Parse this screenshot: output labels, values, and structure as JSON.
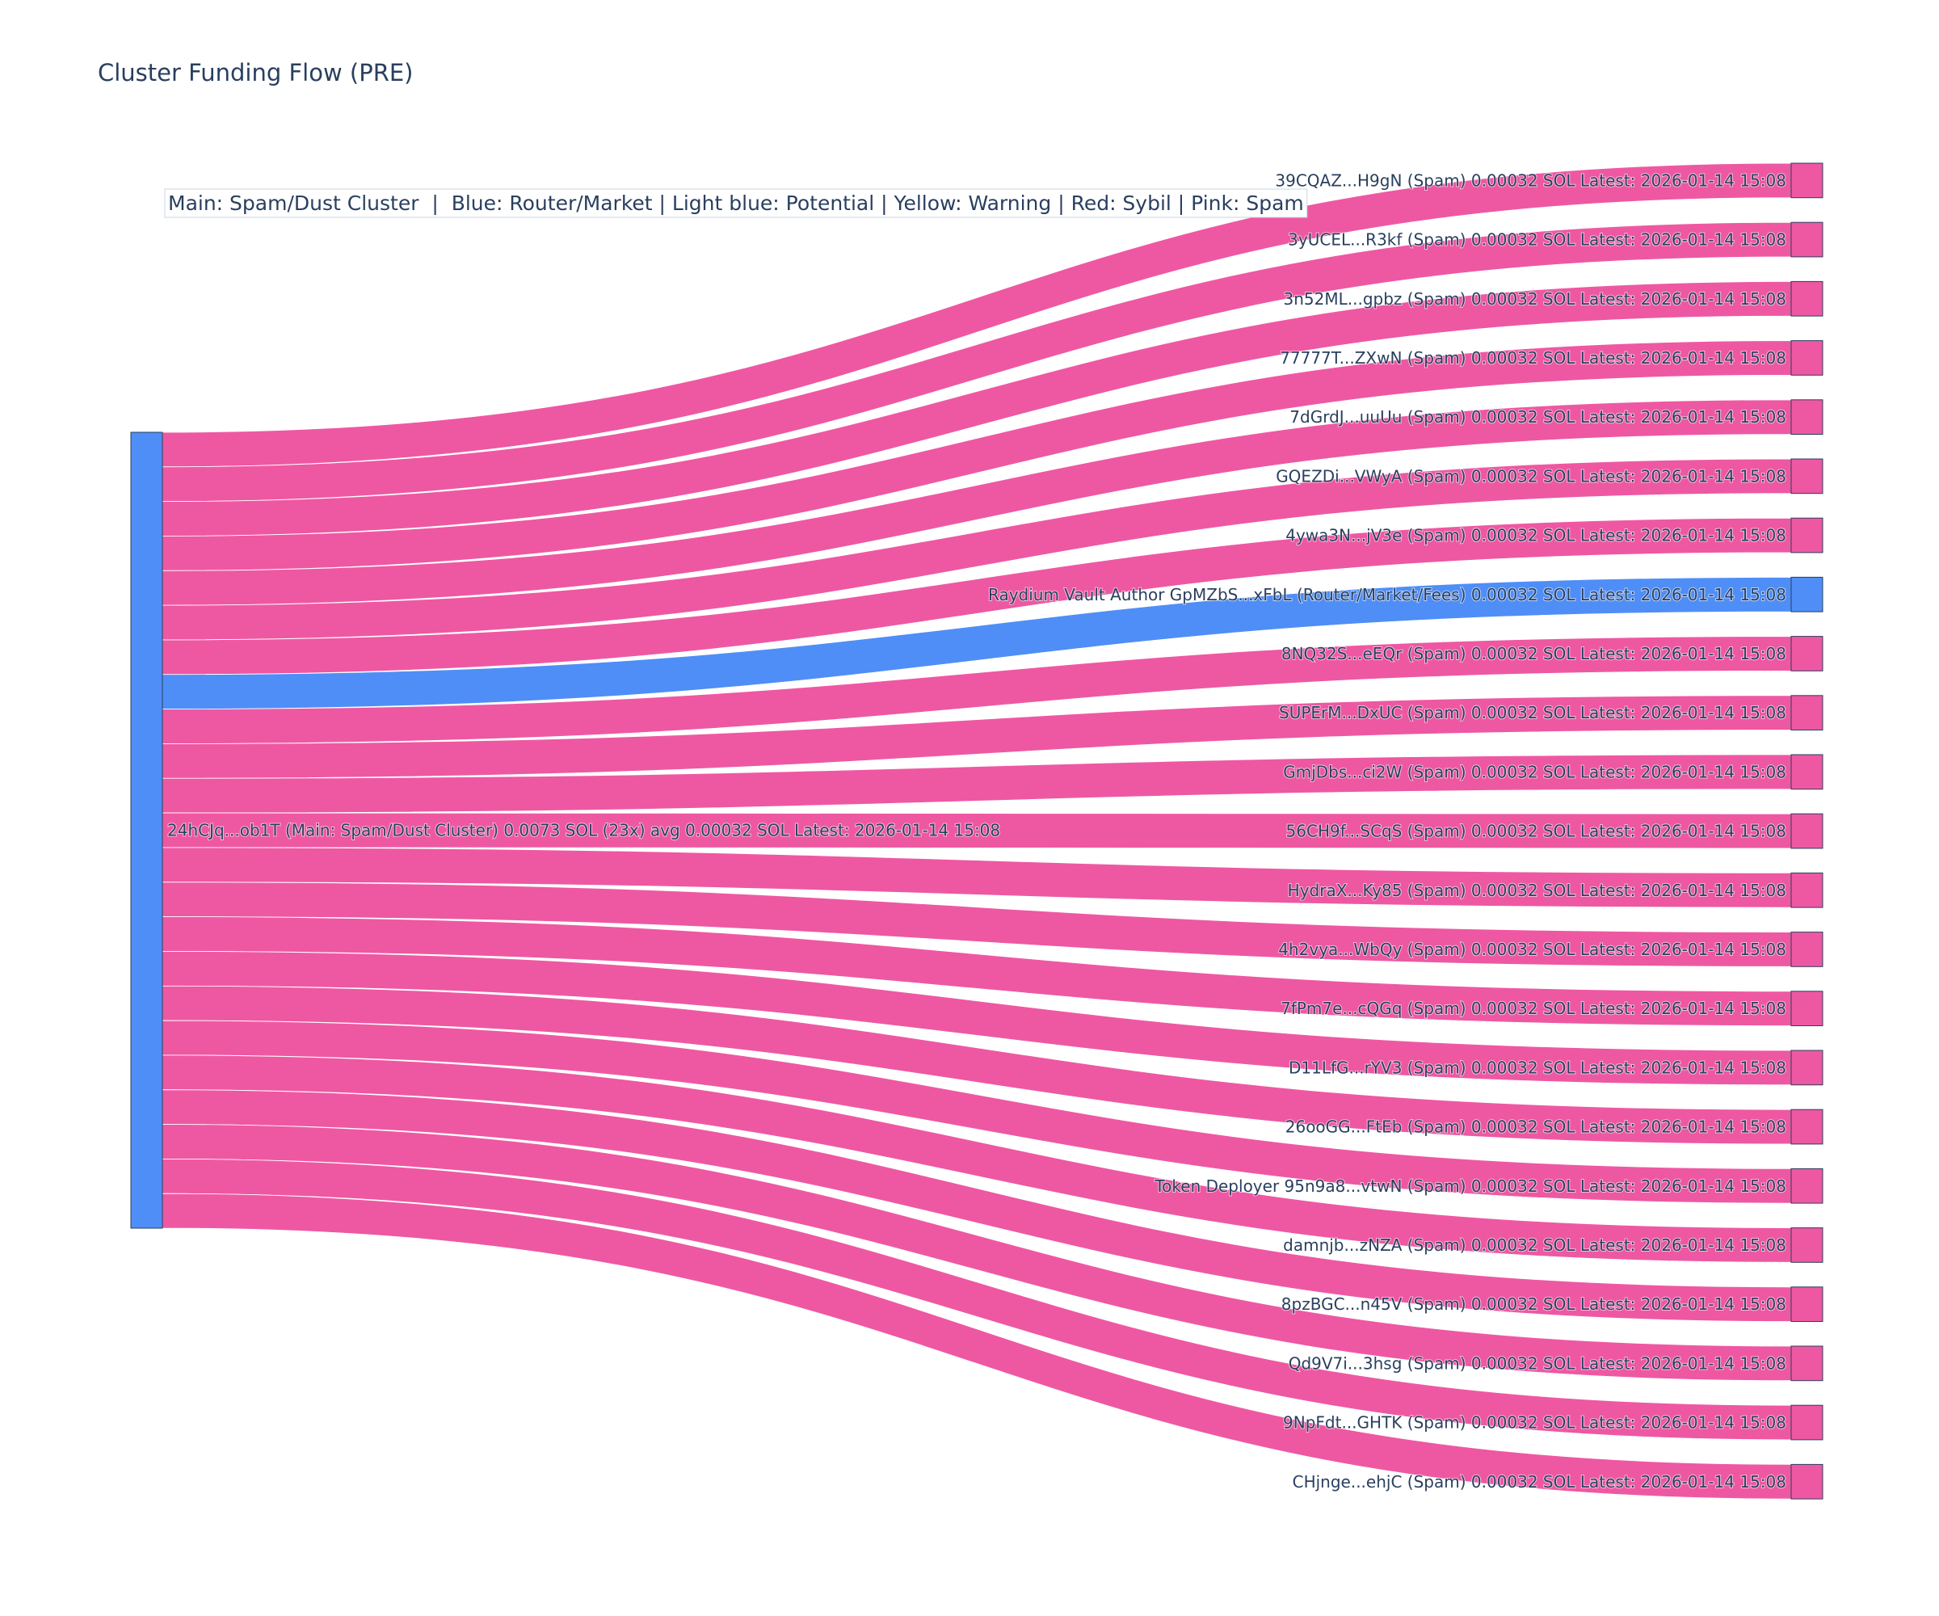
{
  "chart_data": {
    "type": "sankey",
    "title": "Cluster Funding Flow (PRE)",
    "legend_note": "Main: Spam/Dust Cluster  |  Blue: Router/Market | Light blue: Potential | Yellow: Warning | Red: Sybil | Pink: Spam",
    "colors": {
      "main": "#4f8ef7",
      "router": "#4f8ef7",
      "spam": "#ee58a2",
      "node_border": "#2a3f5f"
    },
    "source": {
      "label": "24hCJq...ob1T (Main: Spam/Dust Cluster) 0.0073 SOL (23x) avg 0.00032 SOL Latest: 2026-01-14 15:08",
      "category": "main"
    },
    "targets": [
      {
        "label": "39CQAZ...H9gN (Spam) 0.00032 SOL Latest: 2026-01-14 15:08",
        "category": "spam",
        "value": 0.00032
      },
      {
        "label": "3yUCEL...R3kf (Spam) 0.00032 SOL Latest: 2026-01-14 15:08",
        "category": "spam",
        "value": 0.00032
      },
      {
        "label": "3n52ML...gpbz (Spam) 0.00032 SOL Latest: 2026-01-14 15:08",
        "category": "spam",
        "value": 0.00032
      },
      {
        "label": "77777T...ZXwN (Spam) 0.00032 SOL Latest: 2026-01-14 15:08",
        "category": "spam",
        "value": 0.00032
      },
      {
        "label": "7dGrdJ...uuUu (Spam) 0.00032 SOL Latest: 2026-01-14 15:08",
        "category": "spam",
        "value": 0.00032
      },
      {
        "label": "GQEZDi...VWyA (Spam) 0.00032 SOL Latest: 2026-01-14 15:08",
        "category": "spam",
        "value": 0.00032
      },
      {
        "label": "4ywa3N...jV3e (Spam) 0.00032 SOL Latest: 2026-01-14 15:08",
        "category": "spam",
        "value": 0.00032
      },
      {
        "label": "Raydium Vault Author GpMZbS...xFbL (Router/Market/Fees) 0.00032 SOL Latest: 2026-01-14 15:08",
        "category": "router",
        "value": 0.00032
      },
      {
        "label": "8NQ32S...eEQr (Spam) 0.00032 SOL Latest: 2026-01-14 15:08",
        "category": "spam",
        "value": 0.00032
      },
      {
        "label": "SUPErM...DxUC (Spam) 0.00032 SOL Latest: 2026-01-14 15:08",
        "category": "spam",
        "value": 0.00032
      },
      {
        "label": "GmjDbs...ci2W (Spam) 0.00032 SOL Latest: 2026-01-14 15:08",
        "category": "spam",
        "value": 0.00032
      },
      {
        "label": "56CH9f...SCqS (Spam) 0.00032 SOL Latest: 2026-01-14 15:08",
        "category": "spam",
        "value": 0.00032
      },
      {
        "label": "HydraX...Ky85 (Spam) 0.00032 SOL Latest: 2026-01-14 15:08",
        "category": "spam",
        "value": 0.00032
      },
      {
        "label": "4h2vya...WbQy (Spam) 0.00032 SOL Latest: 2026-01-14 15:08",
        "category": "spam",
        "value": 0.00032
      },
      {
        "label": "7fPm7e...cQGq (Spam) 0.00032 SOL Latest: 2026-01-14 15:08",
        "category": "spam",
        "value": 0.00032
      },
      {
        "label": "D11LfG...rYV3 (Spam) 0.00032 SOL Latest: 2026-01-14 15:08",
        "category": "spam",
        "value": 0.00032
      },
      {
        "label": "26ooGG...FtEb (Spam) 0.00032 SOL Latest: 2026-01-14 15:08",
        "category": "spam",
        "value": 0.00032
      },
      {
        "label": "Token Deployer 95n9a8...vtwN (Spam) 0.00032 SOL Latest: 2026-01-14 15:08",
        "category": "spam",
        "value": 0.00032
      },
      {
        "label": "damnjb...zNZA (Spam) 0.00032 SOL Latest: 2026-01-14 15:08",
        "category": "spam",
        "value": 0.00032
      },
      {
        "label": "8pzBGC...n45V (Spam) 0.00032 SOL Latest: 2026-01-14 15:08",
        "category": "spam",
        "value": 0.00032
      },
      {
        "label": "Qd9V7i...3hsg (Spam) 0.00032 SOL Latest: 2026-01-14 15:08",
        "category": "spam",
        "value": 0.00032
      },
      {
        "label": "9NpFdt...GHTK (Spam) 0.00032 SOL Latest: 2026-01-14 15:08",
        "category": "spam",
        "value": 0.00032
      },
      {
        "label": "CHjnge...ehjC (Spam) 0.00032 SOL Latest: 2026-01-14 15:08",
        "category": "spam",
        "value": 0.00032
      }
    ]
  }
}
